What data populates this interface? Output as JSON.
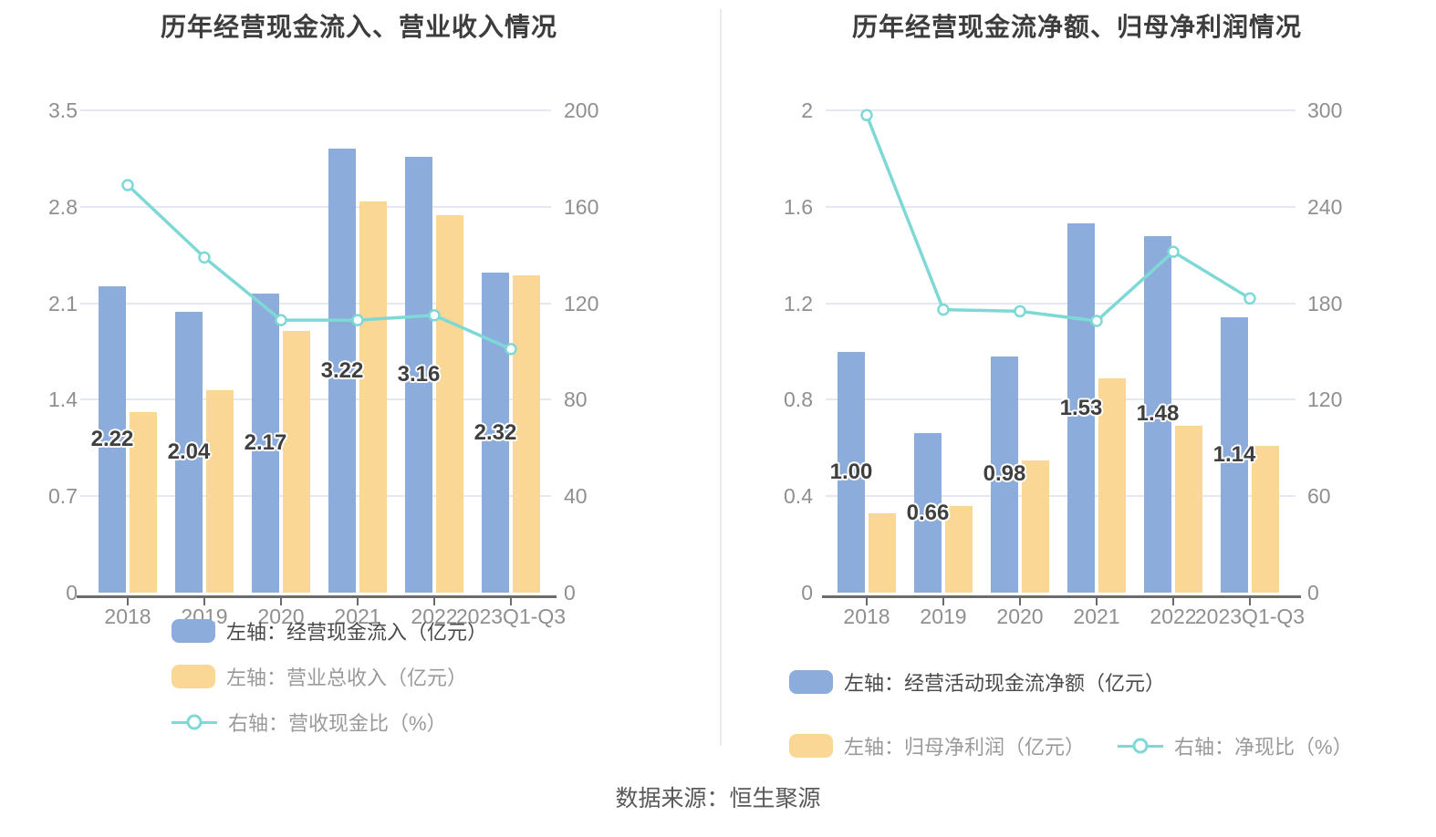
{
  "source_text": "数据来源：恒生聚源",
  "theme": {
    "bar_blue": "#8caddc",
    "bar_yellow": "#fad794",
    "line_teal": "#7ed9d6",
    "grid_color": "#e4e8f3",
    "axis_color": "#6b6b6b",
    "label_gray": "#8f8f8f",
    "title_color": "#3d3d3d"
  },
  "chart_data": [
    {
      "type": "bar+line",
      "title": "历年经营现金流入、营业收入情况",
      "categories": [
        "2018",
        "2019",
        "2020",
        "2021",
        "2022",
        "2023Q1-Q3"
      ],
      "left_axis": {
        "ticks": [
          "3.5",
          "2.8",
          "2.1",
          "1.4",
          "0.7",
          "0"
        ],
        "max": 3.5
      },
      "right_axis": {
        "ticks": [
          "200",
          "160",
          "120",
          "80",
          "40",
          "0"
        ],
        "max": 200
      },
      "grid": true,
      "legend_position": "bottom",
      "bar_series": [
        {
          "name": "左轴：经营现金流入（亿元）",
          "color": "#8caddc",
          "axis": "left",
          "values": [
            2.22,
            2.04,
            2.17,
            3.22,
            3.16,
            2.32
          ],
          "labels": [
            "2.22",
            "2.04",
            "2.17",
            "3.22",
            "3.16",
            "2.32"
          ]
        },
        {
          "name": "左轴：营业总收入（亿元）",
          "color": "#fad794",
          "axis": "left",
          "values": [
            1.31,
            1.47,
            1.9,
            2.84,
            2.74,
            2.3
          ]
        }
      ],
      "line_series": {
        "name": "右轴：营收现金比（%）",
        "color": "#7ed9d6",
        "axis": "right",
        "values": [
          169,
          139,
          113,
          113,
          115,
          101
        ]
      }
    },
    {
      "type": "bar+line",
      "title": "历年经营现金流净额、归母净利润情况",
      "categories": [
        "2018",
        "2019",
        "2020",
        "2021",
        "2022",
        "2023Q1-Q3"
      ],
      "left_axis": {
        "ticks": [
          "2",
          "1.6",
          "1.2",
          "0.8",
          "0.4",
          "0"
        ],
        "max": 2
      },
      "right_axis": {
        "ticks": [
          "300",
          "240",
          "180",
          "120",
          "60",
          "0"
        ],
        "max": 300
      },
      "grid": true,
      "legend_position": "bottom",
      "bar_series": [
        {
          "name": "左轴：经营活动现金流净额（亿元）",
          "color": "#8caddc",
          "axis": "left",
          "values": [
            1.0,
            0.66,
            0.98,
            1.53,
            1.48,
            1.14
          ],
          "labels": [
            "1.00",
            "0.66",
            "0.98",
            "1.53",
            "1.48",
            "1.14"
          ]
        },
        {
          "name": "左轴：归母净利润（亿元）",
          "color": "#fad794",
          "axis": "left",
          "values": [
            0.33,
            0.36,
            0.55,
            0.89,
            0.69,
            0.61
          ]
        }
      ],
      "line_series": {
        "name": "右轴：净现比（%）",
        "color": "#7ed9d6",
        "axis": "right",
        "values": [
          297,
          176,
          175,
          169,
          212,
          183
        ]
      }
    }
  ]
}
